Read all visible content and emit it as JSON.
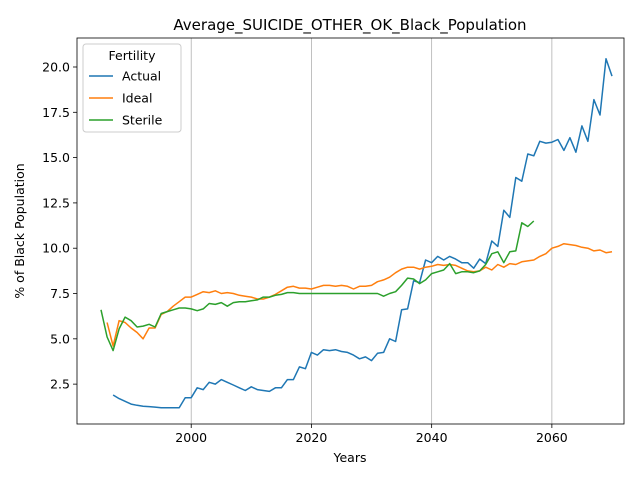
{
  "chart_data": {
    "type": "line",
    "title": "Average_SUICIDE_OTHER_OK_Black_Population",
    "xlabel": "Years",
    "ylabel": "% of Black Population",
    "xlim": [
      1981,
      2072
    ],
    "ylim": [
      0.3,
      21.6
    ],
    "xticks": [
      2000,
      2020,
      2040,
      2060
    ],
    "yticks": [
      2.5,
      5.0,
      7.5,
      10.0,
      12.5,
      15.0,
      17.5,
      20.0
    ],
    "ytick_labels": [
      "2.5",
      "5.0",
      "7.5",
      "10.0",
      "12.5",
      "15.0",
      "17.5",
      "20.0"
    ],
    "grid": "x-only",
    "legend": {
      "title": "Fertility",
      "placement": "top-left"
    },
    "series": [
      {
        "name": "Actual",
        "color": "#1f77b4",
        "x": [
          1987,
          1988,
          1989,
          1990,
          1991,
          1992,
          1993,
          1994,
          1995,
          1996,
          1997,
          1998,
          1999,
          2000,
          2001,
          2002,
          2003,
          2004,
          2005,
          2006,
          2007,
          2008,
          2009,
          2010,
          2011,
          2012,
          2013,
          2014,
          2015,
          2016,
          2017,
          2018,
          2019,
          2020,
          2021,
          2022,
          2023,
          2024,
          2025,
          2026,
          2027,
          2028,
          2029,
          2030,
          2031,
          2032,
          2033,
          2034,
          2035,
          2036,
          2037,
          2038,
          2039,
          2040,
          2041,
          2042,
          2043,
          2044,
          2045,
          2046,
          2047,
          2048,
          2049,
          2050,
          2051,
          2052,
          2053,
          2054,
          2055,
          2056,
          2057,
          2058,
          2059,
          2060,
          2061,
          2062,
          2063,
          2064,
          2065,
          2066,
          2067,
          2068,
          2069,
          2070
        ],
        "values": [
          1.9,
          1.7,
          1.55,
          1.4,
          1.33,
          1.28,
          1.26,
          1.23,
          1.2,
          1.2,
          1.2,
          1.2,
          1.75,
          1.75,
          2.3,
          2.2,
          2.6,
          2.5,
          2.75,
          2.6,
          2.45,
          2.3,
          2.15,
          2.35,
          2.2,
          2.15,
          2.1,
          2.3,
          2.3,
          2.75,
          2.75,
          3.45,
          3.35,
          4.25,
          4.1,
          4.4,
          4.35,
          4.4,
          4.3,
          4.25,
          4.1,
          3.9,
          4.0,
          3.8,
          4.2,
          4.25,
          5.0,
          4.85,
          6.6,
          6.65,
          8.2,
          8.1,
          9.35,
          9.2,
          9.55,
          9.35,
          9.55,
          9.4,
          9.2,
          9.2,
          8.9,
          9.4,
          9.15,
          10.4,
          10.1,
          12.1,
          11.7,
          13.9,
          13.7,
          15.2,
          15.1,
          15.9,
          15.8,
          15.85,
          16.0,
          15.4,
          16.1,
          15.3,
          16.75,
          15.9,
          18.2,
          17.35,
          20.45,
          19.5
        ]
      },
      {
        "name": "Ideal",
        "color": "#ff7f0e",
        "x": [
          1986,
          1987,
          1988,
          1989,
          1990,
          1991,
          1992,
          1993,
          1994,
          1995,
          1996,
          1997,
          1998,
          1999,
          2000,
          2001,
          2002,
          2003,
          2004,
          2005,
          2006,
          2007,
          2008,
          2009,
          2010,
          2011,
          2012,
          2013,
          2014,
          2015,
          2016,
          2017,
          2018,
          2019,
          2020,
          2021,
          2022,
          2023,
          2024,
          2025,
          2026,
          2027,
          2028,
          2029,
          2030,
          2031,
          2032,
          2033,
          2034,
          2035,
          2036,
          2037,
          2038,
          2039,
          2040,
          2041,
          2042,
          2043,
          2044,
          2045,
          2046,
          2047,
          2048,
          2049,
          2050,
          2051,
          2052,
          2053,
          2054,
          2055,
          2056,
          2057,
          2058,
          2059,
          2060,
          2061,
          2062,
          2063,
          2064,
          2065,
          2066,
          2067,
          2068,
          2069,
          2070
        ],
        "values": [
          5.9,
          4.6,
          6.0,
          5.9,
          5.6,
          5.35,
          5.0,
          5.6,
          5.6,
          6.35,
          6.5,
          6.8,
          7.05,
          7.3,
          7.3,
          7.45,
          7.6,
          7.55,
          7.65,
          7.5,
          7.55,
          7.5,
          7.4,
          7.35,
          7.3,
          7.2,
          7.2,
          7.3,
          7.45,
          7.65,
          7.85,
          7.9,
          7.8,
          7.8,
          7.75,
          7.85,
          7.95,
          7.95,
          7.9,
          7.95,
          7.9,
          7.75,
          7.9,
          7.9,
          7.95,
          8.15,
          8.25,
          8.4,
          8.65,
          8.85,
          8.95,
          8.95,
          8.85,
          8.95,
          9.0,
          9.1,
          9.05,
          9.1,
          9.05,
          8.9,
          8.75,
          8.7,
          8.75,
          8.95,
          8.8,
          9.1,
          8.95,
          9.15,
          9.1,
          9.25,
          9.3,
          9.35,
          9.55,
          9.7,
          10.0,
          10.1,
          10.25,
          10.2,
          10.15,
          10.05,
          10.0,
          9.85,
          9.9,
          9.75,
          9.8
        ]
      },
      {
        "name": "Sterile",
        "color": "#2ca02c",
        "x": [
          1985,
          1986,
          1987,
          1988,
          1989,
          1990,
          1991,
          1992,
          1993,
          1994,
          1995,
          1996,
          1997,
          1998,
          1999,
          2000,
          2001,
          2002,
          2003,
          2004,
          2005,
          2006,
          2007,
          2008,
          2009,
          2010,
          2011,
          2012,
          2013,
          2014,
          2015,
          2016,
          2017,
          2018,
          2019,
          2020,
          2021,
          2022,
          2023,
          2024,
          2025,
          2026,
          2027,
          2028,
          2029,
          2030,
          2031,
          2032,
          2033,
          2034,
          2035,
          2036,
          2037,
          2038,
          2039,
          2040,
          2041,
          2042,
          2043,
          2044,
          2045,
          2046,
          2047,
          2048,
          2049,
          2050,
          2051,
          2052,
          2053,
          2054,
          2055,
          2056,
          2057
        ],
        "values": [
          6.6,
          5.1,
          4.35,
          5.55,
          6.2,
          6.0,
          5.65,
          5.7,
          5.8,
          5.65,
          6.4,
          6.5,
          6.6,
          6.7,
          6.7,
          6.65,
          6.55,
          6.65,
          6.95,
          6.9,
          7.0,
          6.8,
          7.0,
          7.05,
          7.05,
          7.1,
          7.15,
          7.3,
          7.3,
          7.4,
          7.45,
          7.55,
          7.55,
          7.5,
          7.5,
          7.5,
          7.5,
          7.5,
          7.5,
          7.5,
          7.5,
          7.5,
          7.5,
          7.5,
          7.5,
          7.5,
          7.5,
          7.35,
          7.5,
          7.6,
          7.95,
          8.35,
          8.3,
          8.05,
          8.25,
          8.6,
          8.7,
          8.8,
          9.15,
          8.6,
          8.7,
          8.7,
          8.65,
          8.75,
          9.1,
          9.7,
          9.8,
          9.2,
          9.8,
          9.85,
          11.4,
          11.2,
          11.5
        ]
      }
    ]
  }
}
